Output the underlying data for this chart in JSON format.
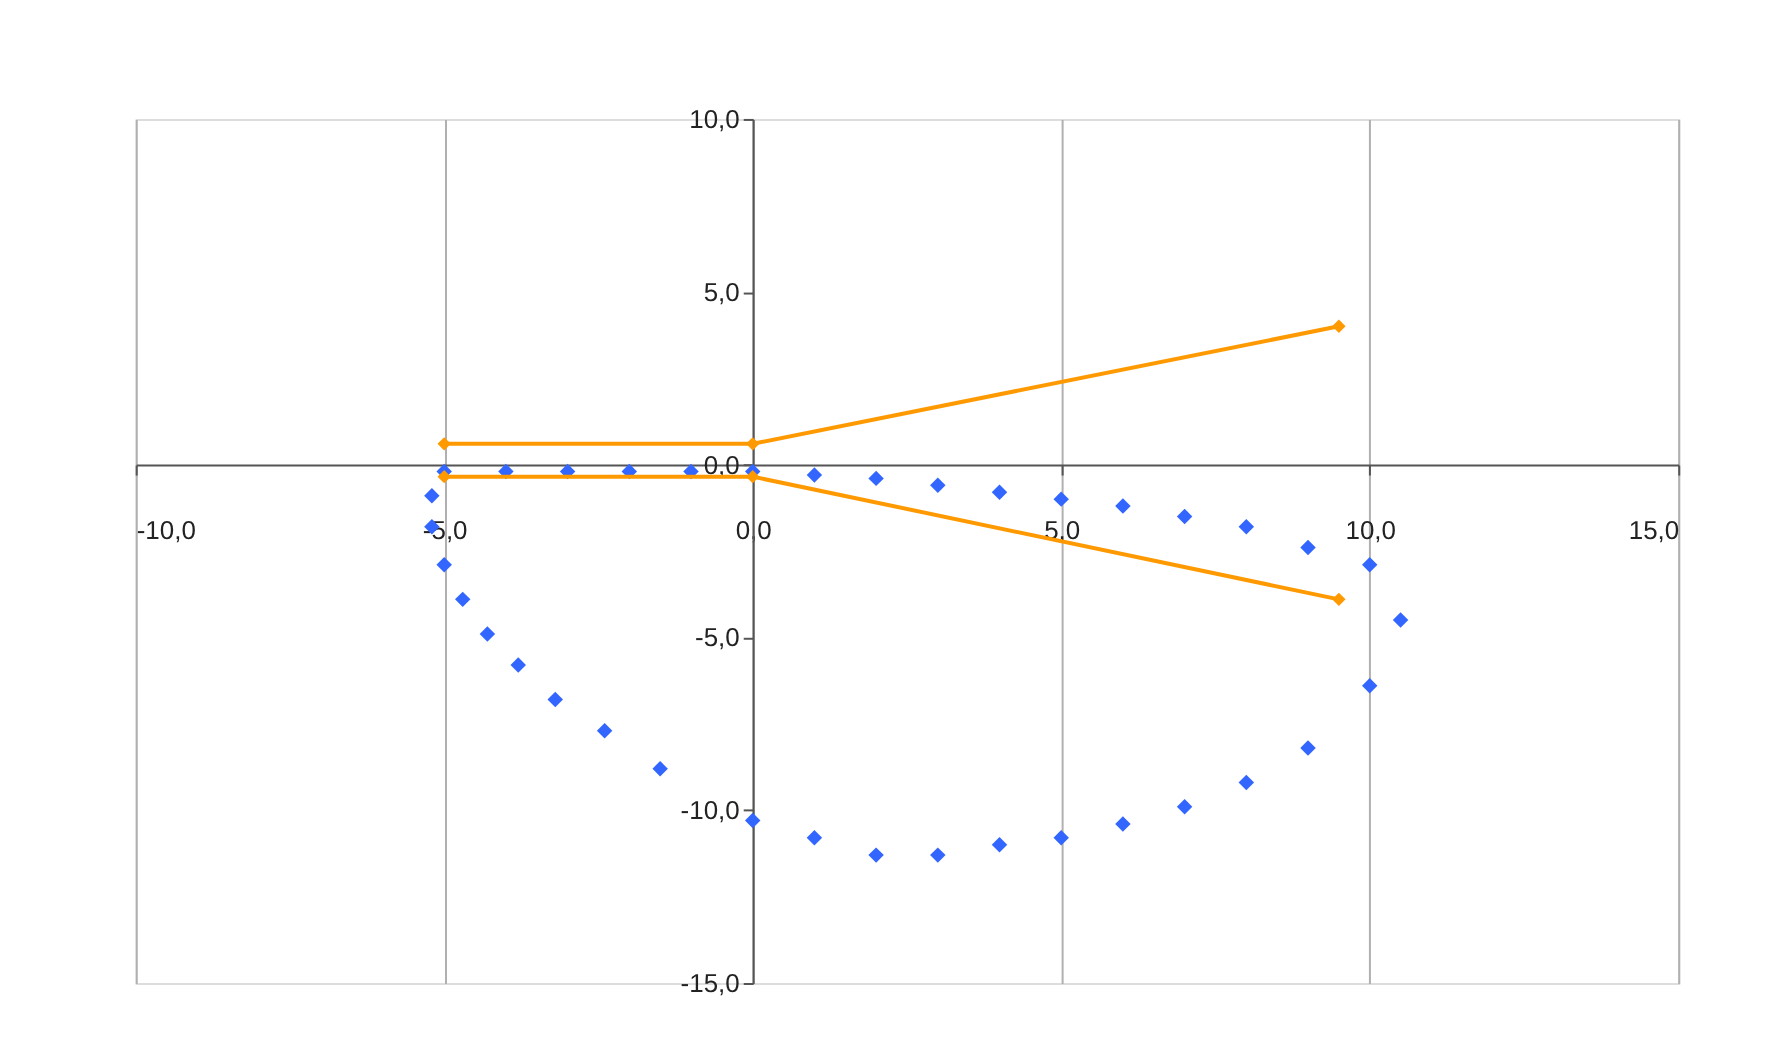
{
  "chart_data": {
    "type": "scatter",
    "xlim": [
      -10,
      15
    ],
    "ylim": [
      -15,
      10
    ],
    "xticks": [
      {
        "value": -10,
        "label": "-10,0"
      },
      {
        "value": -5,
        "label": "-5,0"
      },
      {
        "value": 0,
        "label": "0,0"
      },
      {
        "value": 5,
        "label": "5,0"
      },
      {
        "value": 10,
        "label": "10,0"
      },
      {
        "value": 15,
        "label": "15,0"
      }
    ],
    "yticks": [
      {
        "value": -15,
        "label": "-15,0"
      },
      {
        "value": -10,
        "label": "-10,0"
      },
      {
        "value": -5,
        "label": "-5,0"
      },
      {
        "value": 0,
        "label": "0,0"
      },
      {
        "value": 5,
        "label": "5,0"
      },
      {
        "value": 10,
        "label": "10,0"
      }
    ],
    "grid": "x",
    "legend": false,
    "marker": "diamond",
    "series": [
      {
        "color": "#3366ff",
        "x": [
          -5.2,
          -5,
          -4,
          -3,
          -2,
          -1,
          0,
          1,
          2,
          3,
          4,
          5,
          6,
          7,
          8,
          9,
          10,
          10.5,
          10,
          9,
          8,
          7,
          6,
          5,
          4,
          3,
          2,
          1,
          0,
          -1.5,
          -2.4,
          -3.2,
          -3.8,
          -4.3,
          -4.7,
          -5,
          -5.2
        ],
        "values": [
          -0.9,
          -0.2,
          -0.2,
          -0.2,
          -0.2,
          -0.2,
          -0.2,
          -0.3,
          -0.4,
          -0.6,
          -0.8,
          -1.0,
          -1.2,
          -1.5,
          -1.8,
          -2.4,
          -2.9,
          -4.5,
          -6.4,
          -8.2,
          -9.2,
          -9.9,
          -10.4,
          -10.8,
          -11.0,
          -11.3,
          -11.3,
          -10.8,
          -10.3,
          -8.8,
          -7.7,
          -6.8,
          -5.8,
          -4.9,
          -3.9,
          -2.9,
          -1.8
        ]
      },
      {
        "type": "line",
        "color": "#ff9900",
        "line_style": "solid",
        "x": [
          -5,
          0,
          9.5
        ],
        "values": [
          0.6,
          0.6,
          4.0
        ]
      },
      {
        "type": "line",
        "color": "#ff9900",
        "line_style": "solid",
        "x": [
          -5,
          0,
          9.5
        ],
        "values": [
          -0.35,
          -0.35,
          -3.9
        ]
      }
    ]
  }
}
